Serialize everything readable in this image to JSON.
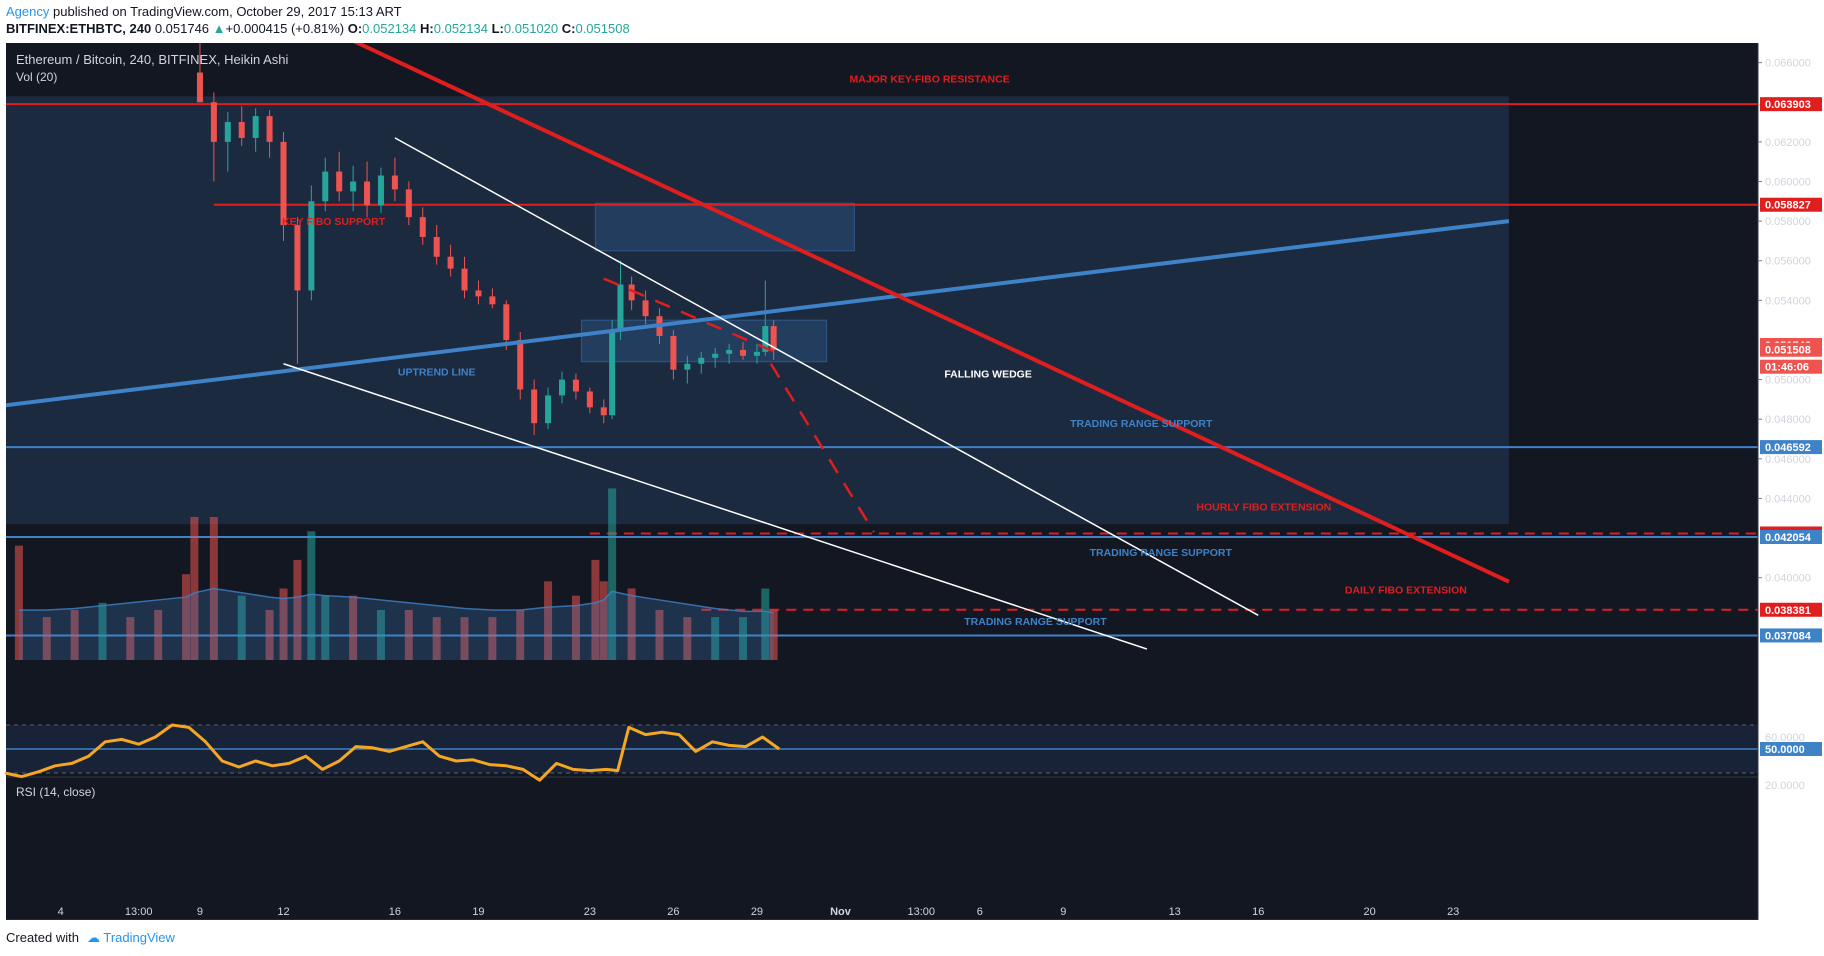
{
  "header": {
    "publisher": "Agency",
    "published_text": "published on TradingView.com, October 29, 2017 15:13 ART",
    "symbol": "BITFINEX:ETHBTC, 240",
    "last": "0.051746",
    "change_arrow": "▲",
    "change": "+0.000415 (+0.81%)",
    "o_label": "O:",
    "o": "0.052134",
    "h_label": "H:",
    "h": "0.052134",
    "l_label": "L:",
    "l": "0.051020",
    "c_label": "C:",
    "c": "0.051508"
  },
  "legend": {
    "title": "Ethereum / Bitcoin, 240, BITFINEX, Heikin Ashi",
    "vol": "Vol (20)",
    "rsi": "RSI (14, close)"
  },
  "footer": {
    "created_with": "Created with",
    "brand": "TradingView"
  },
  "colors": {
    "background": "#131722",
    "band": "#1c2a40",
    "up": "#26a69a",
    "down": "#ef5350",
    "red_line": "#e01e1e",
    "blue_line": "#3e82c8",
    "rsi": "#f5a623"
  },
  "chart_data": [
    {
      "type": "candlestick",
      "title": "Ethereum / Bitcoin, 240, BITFINEX, Heikin Ashi",
      "ylim": [
        0.0364,
        0.067
      ],
      "y_ticks": [
        "0.066000",
        "0.062000",
        "0.060000",
        "0.058000",
        "0.056000",
        "0.054000",
        "0.050000",
        "0.048000",
        "0.046000",
        "0.044000",
        "0.040000"
      ],
      "x_ticks": [
        "4",
        "13:00",
        "9",
        "12",
        "16",
        "19",
        "23",
        "26",
        "29",
        "Nov",
        "13:00",
        "6",
        "9",
        "13",
        "16",
        "20",
        "23"
      ],
      "x_tick_days": [
        4,
        6.8,
        9,
        12,
        16,
        19,
        23,
        26,
        29,
        32,
        34.9,
        37,
        40,
        44,
        47,
        51,
        54
      ],
      "current_date": 29.75,
      "price_markers": [
        {
          "label": "0.063903",
          "value": 0.063903,
          "color": "#e01e1e"
        },
        {
          "label": "0.058827",
          "value": 0.058827,
          "color": "#e01e1e"
        },
        {
          "label": "0.051746",
          "value": 0.051746,
          "color": "#ef5350"
        },
        {
          "label": "0.051508",
          "value": 0.051508,
          "color": "#ef5350"
        },
        {
          "label": "01:46:06",
          "value": 0.05065,
          "color": "#ef5350"
        },
        {
          "label": "0.046592",
          "value": 0.046592,
          "color": "#3e82c8"
        },
        {
          "label": "0.042231",
          "value": 0.042231,
          "color": "#e01e1e"
        },
        {
          "label": "0.042054",
          "value": 0.042054,
          "color": "#3e82c8"
        },
        {
          "label": "0.038381",
          "value": 0.038381,
          "color": "#e01e1e"
        },
        {
          "label": "0.037084",
          "value": 0.037084,
          "color": "#3e82c8"
        }
      ],
      "annotations": [
        {
          "text": "MAJOR KEY-FIBO RESISTANCE",
          "date": 35.2,
          "value": 0.065,
          "color": "#e01e1e"
        },
        {
          "text": "KEY FIBO SUPPORT",
          "date": 13.8,
          "value": 0.0578,
          "color": "#e01e1e"
        },
        {
          "text": "UPTREND LINE",
          "date": 17.5,
          "value": 0.0502,
          "color": "#3e82c8"
        },
        {
          "text": "FALLING WEDGE",
          "date": 37.3,
          "value": 0.0501,
          "color": "#ffffff"
        },
        {
          "text": "TRADING RANGE SUPPORT",
          "date": 42.8,
          "value": 0.0476,
          "color": "#3e82c8"
        },
        {
          "text": "HOURLY FIBO EXTENSION",
          "date": 47.2,
          "value": 0.0434,
          "color": "#e01e1e"
        },
        {
          "text": "TRADING RANGE SUPPORT",
          "date": 43.5,
          "value": 0.0411,
          "color": "#3e82c8"
        },
        {
          "text": "DAILY FIBO EXTENSION",
          "date": 52.3,
          "value": 0.0392,
          "color": "#e01e1e"
        },
        {
          "text": "TRADING RANGE SUPPORT",
          "date": 39.0,
          "value": 0.0376,
          "color": "#3e82c8"
        }
      ],
      "horizontal_lines": [
        {
          "value": 0.063903,
          "from": 2,
          "color": "#e01e1e",
          "style": "solid"
        },
        {
          "value": 0.058827,
          "from": 9.5,
          "color": "#e01e1e",
          "style": "solid"
        },
        {
          "value": 0.046592,
          "from": 2,
          "color": "#3e82c8",
          "style": "solid"
        },
        {
          "value": 0.042231,
          "from": 23,
          "color": "#e01e1e",
          "style": "dashed"
        },
        {
          "value": 0.042054,
          "from": 2,
          "color": "#3e82c8",
          "style": "solid"
        },
        {
          "value": 0.038381,
          "from": 27,
          "color": "#e01e1e",
          "style": "dashed"
        },
        {
          "value": 0.037084,
          "from": 2,
          "color": "#3e82c8",
          "style": "solid"
        }
      ],
      "trend_lines": [
        {
          "from": [
            2,
            0.0487
          ],
          "to": [
            56,
            0.058
          ],
          "color": "#3e82c8",
          "width": 4,
          "style": "solid"
        },
        {
          "from": [
            14.5,
            0.0671
          ],
          "to": [
            56,
            0.0398
          ],
          "color": "#e01e1e",
          "width": 4,
          "style": "solid"
        },
        {
          "from": [
            16,
            0.0622
          ],
          "to": [
            47,
            0.0381
          ],
          "color": "#ffffff",
          "width": 1.5,
          "style": "solid"
        },
        {
          "from": [
            12,
            0.0508
          ],
          "to": [
            43,
            0.0364
          ],
          "color": "#ffffff",
          "width": 1.5,
          "style": "solid"
        },
        {
          "from": [
            23.5,
            0.0551
          ],
          "to": [
            29.8,
            0.0513
          ],
          "color": "#e01e1e",
          "width": 2.5,
          "style": "dashed"
        },
        {
          "from": [
            29.5,
            0.0508
          ],
          "to": [
            33.2,
            0.0423
          ],
          "color": "#e01e1e",
          "width": 2.5,
          "style": "dashed"
        }
      ],
      "zones": [
        {
          "from": 2,
          "to": 56,
          "bottom": 0.0427,
          "top": 0.0643,
          "color": "#1c2a40",
          "opacity": 1
        },
        {
          "from": 23.2,
          "to": 32.5,
          "bottom": 0.0565,
          "top": 0.0589,
          "color": "#2a4c78",
          "opacity": 0.55
        },
        {
          "from": 22.7,
          "to": 31.5,
          "bottom": 0.0509,
          "top": 0.053,
          "color": "#2a4c78",
          "opacity": 0.55
        }
      ],
      "candles": [
        {
          "d": 9.0,
          "o": 0.0655,
          "h": 0.067,
          "l": 0.064,
          "c": 0.064
        },
        {
          "d": 9.5,
          "o": 0.064,
          "h": 0.0645,
          "l": 0.06,
          "c": 0.062
        },
        {
          "d": 10.0,
          "o": 0.062,
          "h": 0.0635,
          "l": 0.0605,
          "c": 0.063
        },
        {
          "d": 10.5,
          "o": 0.063,
          "h": 0.0638,
          "l": 0.0618,
          "c": 0.0622
        },
        {
          "d": 11.0,
          "o": 0.0622,
          "h": 0.0637,
          "l": 0.0615,
          "c": 0.0633
        },
        {
          "d": 11.5,
          "o": 0.0633,
          "h": 0.0636,
          "l": 0.0612,
          "c": 0.062
        },
        {
          "d": 12.0,
          "o": 0.062,
          "h": 0.0625,
          "l": 0.057,
          "c": 0.0578
        },
        {
          "d": 12.5,
          "o": 0.0578,
          "h": 0.0582,
          "l": 0.0508,
          "c": 0.0545
        },
        {
          "d": 13.0,
          "o": 0.0545,
          "h": 0.0598,
          "l": 0.054,
          "c": 0.059
        },
        {
          "d": 13.5,
          "o": 0.059,
          "h": 0.0612,
          "l": 0.0585,
          "c": 0.0605
        },
        {
          "d": 14.0,
          "o": 0.0605,
          "h": 0.0615,
          "l": 0.059,
          "c": 0.0595
        },
        {
          "d": 14.5,
          "o": 0.0595,
          "h": 0.0608,
          "l": 0.0585,
          "c": 0.06
        },
        {
          "d": 15.0,
          "o": 0.06,
          "h": 0.061,
          "l": 0.0582,
          "c": 0.0588
        },
        {
          "d": 15.5,
          "o": 0.0588,
          "h": 0.0607,
          "l": 0.0584,
          "c": 0.0603
        },
        {
          "d": 16.0,
          "o": 0.0603,
          "h": 0.0612,
          "l": 0.059,
          "c": 0.0596
        },
        {
          "d": 16.5,
          "o": 0.0596,
          "h": 0.06,
          "l": 0.0578,
          "c": 0.0582
        },
        {
          "d": 17.0,
          "o": 0.0582,
          "h": 0.0587,
          "l": 0.0568,
          "c": 0.0572
        },
        {
          "d": 17.5,
          "o": 0.0572,
          "h": 0.0578,
          "l": 0.0558,
          "c": 0.0562
        },
        {
          "d": 18.0,
          "o": 0.0562,
          "h": 0.0568,
          "l": 0.0552,
          "c": 0.0556
        },
        {
          "d": 18.5,
          "o": 0.0556,
          "h": 0.0562,
          "l": 0.0541,
          "c": 0.0545
        },
        {
          "d": 19.0,
          "o": 0.0545,
          "h": 0.055,
          "l": 0.0538,
          "c": 0.0542
        },
        {
          "d": 19.5,
          "o": 0.0542,
          "h": 0.0546,
          "l": 0.0536,
          "c": 0.0538
        },
        {
          "d": 20.0,
          "o": 0.0538,
          "h": 0.054,
          "l": 0.0515,
          "c": 0.052
        },
        {
          "d": 20.5,
          "o": 0.052,
          "h": 0.0524,
          "l": 0.049,
          "c": 0.0495
        },
        {
          "d": 21.0,
          "o": 0.0495,
          "h": 0.05,
          "l": 0.0472,
          "c": 0.0478
        },
        {
          "d": 21.5,
          "o": 0.0478,
          "h": 0.0496,
          "l": 0.0475,
          "c": 0.0492
        },
        {
          "d": 22.0,
          "o": 0.0492,
          "h": 0.0504,
          "l": 0.0488,
          "c": 0.05
        },
        {
          "d": 22.5,
          "o": 0.05,
          "h": 0.0503,
          "l": 0.049,
          "c": 0.0494
        },
        {
          "d": 23.0,
          "o": 0.0494,
          "h": 0.0496,
          "l": 0.0483,
          "c": 0.0486
        },
        {
          "d": 23.5,
          "o": 0.0486,
          "h": 0.049,
          "l": 0.0478,
          "c": 0.0482
        },
        {
          "d": 23.8,
          "o": 0.0482,
          "h": 0.053,
          "l": 0.048,
          "c": 0.0525
        },
        {
          "d": 24.1,
          "o": 0.0525,
          "h": 0.056,
          "l": 0.052,
          "c": 0.0548
        },
        {
          "d": 24.5,
          "o": 0.0548,
          "h": 0.0552,
          "l": 0.0535,
          "c": 0.054
        },
        {
          "d": 25.0,
          "o": 0.054,
          "h": 0.0545,
          "l": 0.0528,
          "c": 0.0532
        },
        {
          "d": 25.5,
          "o": 0.0532,
          "h": 0.0536,
          "l": 0.0518,
          "c": 0.0522
        },
        {
          "d": 26.0,
          "o": 0.0522,
          "h": 0.0525,
          "l": 0.05,
          "c": 0.0505
        },
        {
          "d": 26.5,
          "o": 0.0505,
          "h": 0.0512,
          "l": 0.0498,
          "c": 0.0508
        },
        {
          "d": 27.0,
          "o": 0.0508,
          "h": 0.0514,
          "l": 0.0503,
          "c": 0.0511
        },
        {
          "d": 27.5,
          "o": 0.0511,
          "h": 0.0516,
          "l": 0.0506,
          "c": 0.0513
        },
        {
          "d": 28.0,
          "o": 0.0513,
          "h": 0.0518,
          "l": 0.0508,
          "c": 0.0515
        },
        {
          "d": 28.5,
          "o": 0.0515,
          "h": 0.0519,
          "l": 0.051,
          "c": 0.0512
        },
        {
          "d": 29.0,
          "o": 0.0512,
          "h": 0.0518,
          "l": 0.0508,
          "c": 0.0514
        },
        {
          "d": 29.3,
          "o": 0.0514,
          "h": 0.055,
          "l": 0.0512,
          "c": 0.0527
        },
        {
          "d": 29.6,
          "o": 0.0527,
          "h": 0.053,
          "l": 0.051,
          "c": 0.0515
        }
      ]
    },
    {
      "type": "bar",
      "title": "Vol (20)",
      "x": [
        2.5,
        3.5,
        4.5,
        5.5,
        6.5,
        7.5,
        8.5,
        8.8,
        9.5,
        10.5,
        11.5,
        12.0,
        12.5,
        13.0,
        13.5,
        14.5,
        15.5,
        16.5,
        17.5,
        18.5,
        19.5,
        20.5,
        21.5,
        22.5,
        23.2,
        23.5,
        23.8,
        24.5,
        25.5,
        26.5,
        27.5,
        28.5,
        29.3,
        29.6
      ],
      "values": [
        0.8,
        0.3,
        0.35,
        0.4,
        0.3,
        0.35,
        0.6,
        1.0,
        1.0,
        0.45,
        0.35,
        0.5,
        0.7,
        0.9,
        0.45,
        0.45,
        0.35,
        0.35,
        0.3,
        0.3,
        0.3,
        0.35,
        0.55,
        0.45,
        0.7,
        0.55,
        1.2,
        0.5,
        0.35,
        0.3,
        0.3,
        0.3,
        0.5,
        0.35
      ],
      "colors": [
        "down",
        "down",
        "down",
        "up",
        "down",
        "down",
        "down",
        "down",
        "down",
        "up",
        "down",
        "down",
        "down",
        "up",
        "up",
        "down",
        "up",
        "down",
        "down",
        "down",
        "down",
        "down",
        "down",
        "down",
        "down",
        "down",
        "up",
        "down",
        "down",
        "down",
        "up",
        "up",
        "up",
        "down"
      ],
      "ma": [
        0.35,
        0.35,
        0.36,
        0.38,
        0.4,
        0.42,
        0.44,
        0.47,
        0.5,
        0.47,
        0.44,
        0.43,
        0.44,
        0.46,
        0.45,
        0.44,
        0.42,
        0.4,
        0.38,
        0.36,
        0.35,
        0.35,
        0.37,
        0.38,
        0.4,
        0.42,
        0.48,
        0.45,
        0.42,
        0.39,
        0.36,
        0.34,
        0.34,
        0.33
      ]
    },
    {
      "type": "line",
      "title": "RSI (14, close)",
      "ylim": [
        10,
        80
      ],
      "y_ticks": [
        "60.0000",
        "20.0000"
      ],
      "midline_label": "50.0000",
      "bands": [
        70,
        30
      ],
      "x": [
        2,
        2.6,
        3.2,
        3.8,
        4.4,
        5,
        5.6,
        6.2,
        6.8,
        7.4,
        8,
        8.6,
        9.2,
        9.8,
        10.4,
        11,
        11.6,
        12.2,
        12.8,
        13.4,
        14,
        14.6,
        15.2,
        15.8,
        16.4,
        17,
        17.6,
        18.2,
        18.8,
        19.4,
        20,
        20.6,
        21.2,
        21.8,
        22.4,
        23,
        23.6,
        24,
        24.4,
        25,
        25.6,
        26.2,
        26.8,
        27.4,
        28,
        28.6,
        29.2,
        29.5,
        29.8
      ],
      "values": [
        30,
        27,
        31,
        36,
        38,
        44,
        56,
        58,
        54,
        60,
        70,
        68,
        56,
        40,
        35,
        40,
        36,
        38,
        44,
        33,
        40,
        52,
        51,
        48,
        52,
        56,
        44,
        40,
        41,
        37,
        36,
        33,
        24,
        38,
        33,
        32,
        33,
        32,
        68,
        62,
        64,
        62,
        48,
        56,
        53,
        52,
        60,
        55,
        50
      ]
    }
  ]
}
